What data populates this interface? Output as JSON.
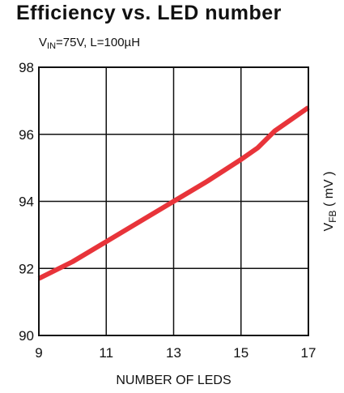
{
  "chart_data": {
    "type": "line",
    "title": "Efficiency vs. LED number",
    "subtitle": {
      "v_prefix": "V",
      "v_subscript": "IN",
      "rest": "=75V, L=100µH"
    },
    "xlabel": "NUMBER OF LEDS",
    "ylabel": {
      "prefix": "V",
      "subscript": "FB",
      "suffix": " ( mV )"
    },
    "xlim": [
      9,
      17
    ],
    "ylim": [
      90,
      98
    ],
    "xticks": [
      9,
      11,
      13,
      15,
      17
    ],
    "yticks": [
      90,
      92,
      94,
      96,
      98
    ],
    "grid": true,
    "series": [
      {
        "color": "#e8343a",
        "x": [
          9,
          10,
          11,
          12,
          13,
          14,
          15,
          15.5,
          16,
          17
        ],
        "y": [
          91.7,
          92.2,
          92.8,
          93.4,
          94.0,
          94.6,
          95.25,
          95.6,
          96.1,
          96.8
        ]
      }
    ]
  }
}
